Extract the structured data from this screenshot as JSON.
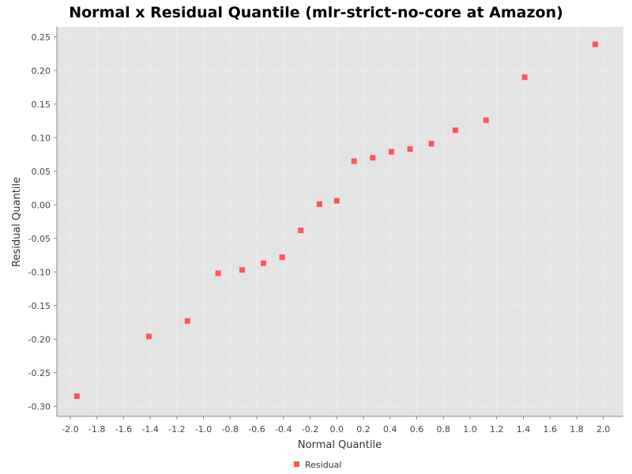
{
  "chart_data": {
    "type": "scatter",
    "title": "Normal x Residual Quantile (mlr-strict-no-core at Amazon)",
    "xlabel": "Normal Quantile",
    "ylabel": "Residual Quantile",
    "xlim": [
      -2.1,
      2.15
    ],
    "ylim": [
      -0.315,
      0.265
    ],
    "xticks": [
      "-2.0",
      "-1.8",
      "-1.6",
      "-1.4",
      "-1.2",
      "-1.0",
      "-0.8",
      "-0.6",
      "-0.4",
      "-0.2",
      "0.0",
      "0.2",
      "0.4",
      "0.6",
      "0.8",
      "1.0",
      "1.2",
      "1.4",
      "1.6",
      "1.8",
      "2.0"
    ],
    "yticks": [
      "-0.30",
      "-0.25",
      "-0.20",
      "-0.15",
      "-0.10",
      "-0.05",
      "0.00",
      "0.05",
      "0.10",
      "0.15",
      "0.20",
      "0.25"
    ],
    "grid": true,
    "legend_position": "bottom-center",
    "series": [
      {
        "name": "Residual",
        "color": "#ff5555",
        "points": [
          [
            -1.95,
            -0.285
          ],
          [
            -1.41,
            -0.196
          ],
          [
            -1.12,
            -0.173
          ],
          [
            -0.89,
            -0.102
          ],
          [
            -0.71,
            -0.097
          ],
          [
            -0.55,
            -0.087
          ],
          [
            -0.41,
            -0.078
          ],
          [
            -0.27,
            -0.038
          ],
          [
            -0.13,
            0.001
          ],
          [
            0.0,
            0.006
          ],
          [
            0.13,
            0.065
          ],
          [
            0.27,
            0.07
          ],
          [
            0.41,
            0.079
          ],
          [
            0.55,
            0.083
          ],
          [
            0.71,
            0.091
          ],
          [
            0.89,
            0.111
          ],
          [
            1.12,
            0.126
          ],
          [
            1.41,
            0.19
          ],
          [
            1.94,
            0.239
          ]
        ]
      }
    ]
  }
}
